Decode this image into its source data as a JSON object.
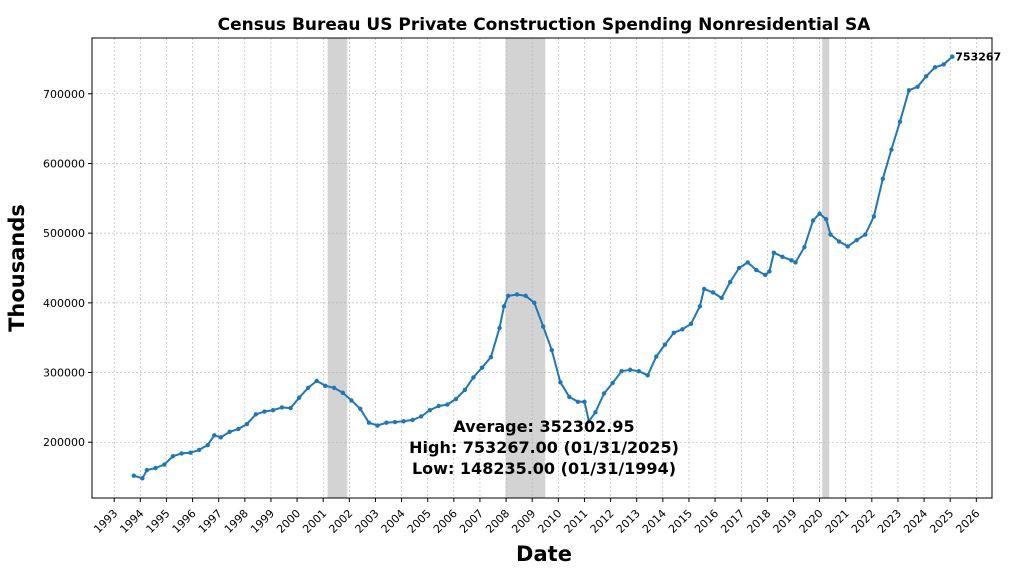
{
  "chart_data": {
    "type": "line",
    "title": "Census Bureau US Private Construction Spending Nonresidential SA",
    "xlabel": "Date",
    "ylabel": "Thousands",
    "x_ticks": [
      "1993",
      "1994",
      "1995",
      "1996",
      "1997",
      "1998",
      "1999",
      "2000",
      "2001",
      "2002",
      "2003",
      "2004",
      "2005",
      "2006",
      "2007",
      "2008",
      "2009",
      "2010",
      "2011",
      "2012",
      "2013",
      "2014",
      "2015",
      "2016",
      "2017",
      "2018",
      "2019",
      "2020",
      "2021",
      "2022",
      "2023",
      "2024",
      "2025",
      "2026"
    ],
    "y_ticks": [
      200000,
      300000,
      400000,
      500000,
      600000,
      700000
    ],
    "xlim": [
      1992.15,
      2026.6
    ],
    "ylim": [
      120000,
      780000
    ],
    "grid": true,
    "line_color": "#1f77b4",
    "recession_color": "#d3d3d3",
    "recessions": [
      [
        2001.17,
        2001.92
      ],
      [
        2007.98,
        2009.5
      ],
      [
        2020.1,
        2020.37
      ]
    ],
    "series": [
      {
        "points": [
          [
            1993.75,
            152000
          ],
          [
            1994.08,
            148235
          ],
          [
            1994.25,
            160000
          ],
          [
            1994.58,
            163000
          ],
          [
            1994.92,
            168000
          ],
          [
            1995.25,
            180000
          ],
          [
            1995.58,
            184000
          ],
          [
            1995.92,
            185000
          ],
          [
            1996.25,
            189000
          ],
          [
            1996.58,
            196000
          ],
          [
            1996.83,
            210000
          ],
          [
            1997.08,
            207000
          ],
          [
            1997.42,
            215000
          ],
          [
            1997.75,
            219000
          ],
          [
            1998.08,
            226000
          ],
          [
            1998.42,
            240000
          ],
          [
            1998.75,
            244000
          ],
          [
            1999.08,
            246000
          ],
          [
            1999.42,
            250000
          ],
          [
            1999.75,
            249000
          ],
          [
            2000.08,
            264000
          ],
          [
            2000.42,
            278000
          ],
          [
            2000.75,
            288000
          ],
          [
            2001.08,
            281000
          ],
          [
            2001.42,
            278000
          ],
          [
            2001.75,
            271000
          ],
          [
            2002.08,
            260000
          ],
          [
            2002.42,
            248000
          ],
          [
            2002.75,
            228000
          ],
          [
            2003.08,
            224000
          ],
          [
            2003.42,
            228000
          ],
          [
            2003.75,
            229000
          ],
          [
            2004.08,
            230000
          ],
          [
            2004.42,
            232000
          ],
          [
            2004.75,
            237000
          ],
          [
            2005.08,
            246000
          ],
          [
            2005.42,
            252000
          ],
          [
            2005.75,
            254000
          ],
          [
            2006.08,
            262000
          ],
          [
            2006.42,
            275000
          ],
          [
            2006.75,
            293000
          ],
          [
            2007.08,
            307000
          ],
          [
            2007.42,
            322000
          ],
          [
            2007.75,
            364000
          ],
          [
            2007.92,
            395000
          ],
          [
            2008.08,
            410000
          ],
          [
            2008.42,
            412000
          ],
          [
            2008.75,
            410000
          ],
          [
            2009.08,
            400000
          ],
          [
            2009.42,
            366000
          ],
          [
            2009.75,
            332000
          ],
          [
            2010.08,
            286000
          ],
          [
            2010.42,
            265000
          ],
          [
            2010.75,
            258000
          ],
          [
            2011.0,
            258000
          ],
          [
            2011.17,
            230000
          ],
          [
            2011.42,
            243000
          ],
          [
            2011.75,
            270000
          ],
          [
            2012.08,
            285000
          ],
          [
            2012.42,
            302000
          ],
          [
            2012.75,
            304000
          ],
          [
            2013.08,
            302000
          ],
          [
            2013.42,
            296000
          ],
          [
            2013.75,
            323000
          ],
          [
            2014.08,
            340000
          ],
          [
            2014.42,
            357000
          ],
          [
            2014.75,
            362000
          ],
          [
            2015.08,
            370000
          ],
          [
            2015.42,
            395000
          ],
          [
            2015.58,
            420000
          ],
          [
            2015.92,
            415000
          ],
          [
            2016.25,
            407000
          ],
          [
            2016.58,
            430000
          ],
          [
            2016.92,
            450000
          ],
          [
            2017.25,
            458000
          ],
          [
            2017.58,
            447000
          ],
          [
            2017.92,
            440000
          ],
          [
            2018.08,
            445000
          ],
          [
            2018.25,
            472000
          ],
          [
            2018.58,
            466000
          ],
          [
            2018.92,
            461000
          ],
          [
            2019.08,
            458000
          ],
          [
            2019.42,
            480000
          ],
          [
            2019.75,
            518000
          ],
          [
            2020.0,
            528000
          ],
          [
            2020.25,
            520000
          ],
          [
            2020.42,
            498000
          ],
          [
            2020.75,
            488000
          ],
          [
            2021.08,
            481000
          ],
          [
            2021.42,
            490000
          ],
          [
            2021.75,
            498000
          ],
          [
            2022.08,
            524000
          ],
          [
            2022.42,
            578000
          ],
          [
            2022.75,
            620000
          ],
          [
            2023.08,
            660000
          ],
          [
            2023.42,
            705000
          ],
          [
            2023.75,
            710000
          ],
          [
            2024.08,
            725000
          ],
          [
            2024.42,
            738000
          ],
          [
            2024.75,
            742000
          ],
          [
            2025.08,
            753267
          ]
        ]
      }
    ],
    "last_value_label": "753267",
    "stats": {
      "average": "Average: 352302.95",
      "high": "High: 753267.00 (01/31/2025)",
      "low": "Low: 148235.00 (01/31/1994)"
    }
  }
}
